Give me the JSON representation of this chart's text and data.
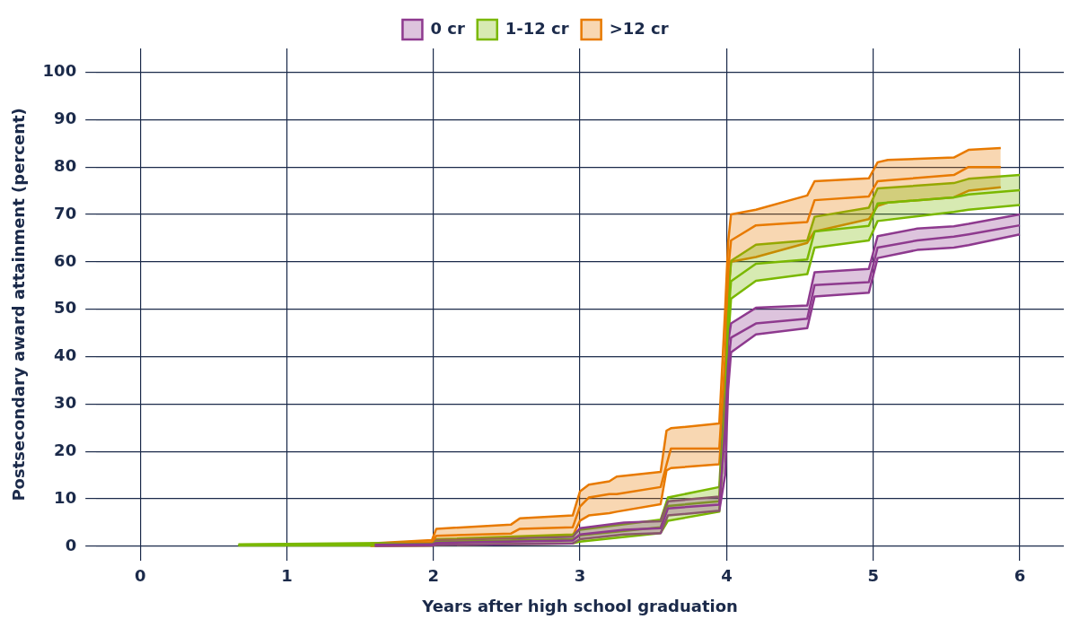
{
  "chart_data": {
    "type": "line",
    "xlabel": "Years after high school graduation",
    "ylabel": "Postsecondary award attainment (percent)",
    "xlim": [
      -0.3,
      6.3
    ],
    "xticks": [
      0,
      1,
      2,
      3,
      4,
      5,
      6
    ],
    "ylim": [
      -3,
      105
    ],
    "yticks": [
      0,
      10,
      20,
      30,
      40,
      50,
      60,
      70,
      80,
      90,
      100
    ],
    "grid": true,
    "legend": "top",
    "marker": "none",
    "line_style": "solid",
    "series": [
      {
        "name": "0 cr",
        "color": "#8e3a8f",
        "x": [
          1.6,
          1.99,
          2.02,
          2.95,
          3.0,
          3.3,
          3.55,
          3.6,
          3.95,
          3.99,
          4.01,
          4.03,
          4.2,
          4.55,
          4.6,
          4.97,
          5.03,
          5.3,
          5.55,
          5.65,
          6.0
        ],
        "values": [
          0.3,
          0.4,
          0.7,
          1.2,
          2.5,
          3.5,
          3.8,
          8,
          8.8,
          25,
          38,
          44,
          47,
          48,
          55.1,
          55.7,
          63,
          64.5,
          65.3,
          65.8,
          67.7
        ],
        "lower": [
          0.1,
          0.2,
          0.3,
          0.6,
          1.5,
          2.5,
          2.8,
          6.5,
          7.5,
          15,
          33,
          40.9,
          44.7,
          46,
          52.7,
          53.5,
          60.8,
          62.5,
          63,
          63.5,
          65.8
        ],
        "upper": [
          0.5,
          0.7,
          1.3,
          2,
          3.8,
          5,
          5.3,
          9.5,
          10.5,
          32,
          43,
          47,
          50.3,
          50.8,
          57.8,
          58.5,
          65.4,
          67,
          67.5,
          68,
          70
        ]
      },
      {
        "name": "1-12 cr",
        "color": "#7ab800",
        "x": [
          0.67,
          1.99,
          2.02,
          2.95,
          3.0,
          3.55,
          3.6,
          3.95,
          3.99,
          4.01,
          4.03,
          4.2,
          4.55,
          4.6,
          4.97,
          5.03,
          5.55,
          5.65,
          6.0
        ],
        "values": [
          0.3,
          0.5,
          0.9,
          1.5,
          2.3,
          4,
          8.5,
          9.5,
          30,
          48,
          55.9,
          59.6,
          60.5,
          66.4,
          67.6,
          72.3,
          73.6,
          74.2,
          75.1
        ],
        "lower": [
          0.2,
          0.2,
          0.3,
          0.6,
          1,
          2.8,
          5.4,
          7.3,
          25,
          43,
          52.2,
          56,
          57.4,
          63,
          64.5,
          68.6,
          70.5,
          71,
          72
        ],
        "upper": [
          0.4,
          0.8,
          1.5,
          2.5,
          3.5,
          5.6,
          10.3,
          12.5,
          35,
          53,
          60.2,
          63.6,
          64.5,
          69.5,
          71.4,
          75.5,
          76.6,
          77.5,
          78.3
        ]
      },
      {
        "name": ">12 cr",
        "color": "#e87a00",
        "x": [
          1.57,
          1.99,
          2.02,
          2.53,
          2.59,
          2.95,
          3.0,
          3.06,
          3.2,
          3.25,
          3.55,
          3.59,
          3.62,
          3.95,
          3.99,
          4.01,
          4.03,
          4.2,
          4.55,
          4.6,
          4.97,
          5.03,
          5.1,
          5.55,
          5.65,
          5.87
        ],
        "values": [
          0.4,
          0.9,
          2.2,
          2.7,
          3.7,
          4,
          8.4,
          10.3,
          11,
          11,
          12.5,
          17.2,
          20.6,
          20.6,
          40,
          58,
          64.5,
          67.7,
          68.4,
          73,
          73.8,
          77,
          77.2,
          78.3,
          80,
          80
        ],
        "lower": [
          0.1,
          0.2,
          0.9,
          1.1,
          1.9,
          2.2,
          5.4,
          6.5,
          7,
          7.3,
          8.9,
          16,
          16.5,
          17.3,
          35,
          52,
          60,
          61,
          64,
          66.4,
          69,
          71.8,
          72.5,
          73.6,
          75,
          75.7
        ],
        "upper": [
          0.6,
          1.3,
          3.7,
          4.6,
          5.9,
          6.5,
          11.6,
          13,
          13.7,
          14.7,
          15.7,
          24.4,
          24.9,
          25.9,
          50,
          64,
          70,
          71,
          74,
          77,
          77.6,
          81,
          81.5,
          82,
          83.6,
          84
        ]
      },
      {
        "color": "#8e3a8f",
        "x": [
          1.6,
          1.99,
          2.02,
          2.95,
          3.0,
          3.3,
          3.55,
          3.6,
          3.95,
          3.99,
          4.01,
          4.03,
          4.2,
          4.55,
          4.6,
          4.97,
          5.03,
          5.3,
          5.55,
          5.65,
          6.0
        ],
        "values": [
          0.1,
          0.2,
          0.3,
          0.6,
          1.5,
          2.5,
          2.8,
          6.5,
          7.5,
          15,
          33,
          40.9,
          44.7,
          46,
          52.7,
          53.5,
          60.8,
          62.5,
          63,
          63.5,
          65.8
        ]
      },
      {
        "color": "#8e3a8f",
        "x": [
          1.6,
          1.99,
          2.02,
          2.95,
          3.0,
          3.3,
          3.55,
          3.6,
          3.95,
          3.99,
          4.01,
          4.03,
          4.2,
          4.55,
          4.6,
          4.97,
          5.03,
          5.3,
          5.55,
          5.65,
          6.0
        ],
        "values": [
          0.5,
          0.7,
          1.3,
          2,
          3.8,
          5,
          5.3,
          9.5,
          10.5,
          32,
          43,
          47,
          50.3,
          50.8,
          57.8,
          58.5,
          65.4,
          67,
          67.5,
          68,
          70
        ]
      },
      {
        "color": "#7ab800",
        "x": [
          0.67,
          1.99,
          2.02,
          2.95,
          3.0,
          3.55,
          3.6,
          3.95,
          3.99,
          4.01,
          4.03,
          4.2,
          4.55,
          4.6,
          4.97,
          5.03,
          5.55,
          5.65,
          6.0
        ],
        "values": [
          0.2,
          0.2,
          0.3,
          0.6,
          1,
          2.8,
          5.4,
          7.3,
          25,
          43,
          52.2,
          56,
          57.4,
          63,
          64.5,
          68.6,
          70.5,
          71,
          72
        ]
      },
      {
        "color": "#7ab800",
        "x": [
          0.67,
          1.99,
          2.02,
          2.95,
          3.0,
          3.55,
          3.6,
          3.95,
          3.99,
          4.01,
          4.03,
          4.2,
          4.55,
          4.6,
          4.97,
          5.03,
          5.55,
          5.65,
          6.0
        ],
        "values": [
          0.4,
          0.8,
          1.5,
          2.5,
          3.5,
          5.6,
          10.3,
          12.5,
          35,
          53,
          60.2,
          63.6,
          64.5,
          69.5,
          71.4,
          75.5,
          76.6,
          77.5,
          78.3
        ]
      },
      {
        "color": "#e87a00",
        "x": [
          1.57,
          1.99,
          2.02,
          2.53,
          2.59,
          2.95,
          3.0,
          3.06,
          3.2,
          3.25,
          3.55,
          3.59,
          3.62,
          3.95,
          3.99,
          4.01,
          4.03,
          4.2,
          4.55,
          4.6,
          4.97,
          5.03,
          5.1,
          5.55,
          5.65,
          5.87
        ],
        "values": [
          0.1,
          0.2,
          0.9,
          1.1,
          1.9,
          2.2,
          5.4,
          6.5,
          7,
          7.3,
          8.9,
          16,
          16.5,
          17.3,
          35,
          52,
          60,
          61,
          64,
          66.4,
          69,
          71.8,
          72.5,
          73.6,
          75,
          75.7
        ]
      },
      {
        "color": "#e87a00",
        "x": [
          1.57,
          1.99,
          2.02,
          2.53,
          2.59,
          2.95,
          3.0,
          3.06,
          3.2,
          3.25,
          3.55,
          3.59,
          3.62,
          3.95,
          3.99,
          4.01,
          4.03,
          4.2,
          4.55,
          4.6,
          4.97,
          5.03,
          5.1,
          5.55,
          5.65,
          5.87
        ],
        "values": [
          0.6,
          1.3,
          3.7,
          4.6,
          5.9,
          6.5,
          11.6,
          13,
          13.7,
          14.7,
          15.7,
          24.4,
          24.9,
          25.9,
          50,
          64,
          70,
          71,
          74,
          77,
          77.6,
          81,
          81.5,
          82,
          83.6,
          84
        ]
      }
    ]
  }
}
